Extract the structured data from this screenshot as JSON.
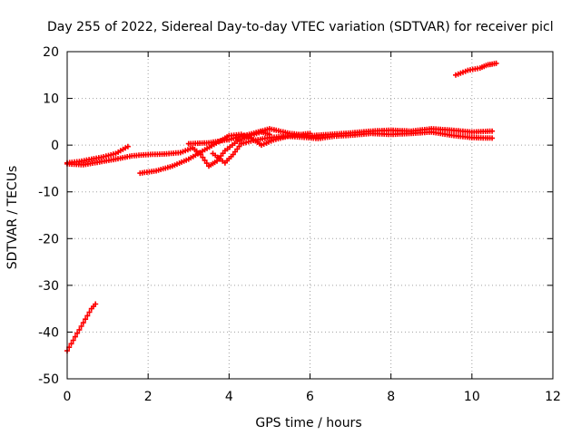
{
  "chart_data": {
    "type": "scatter",
    "title": "Day 255 of 2022, Sidereal Day-to-day VTEC variation (SDTVAR) for receiver picl",
    "xlabel": "GPS time / hours",
    "ylabel": "SDTVAR / TECUs",
    "xlim": [
      0,
      12
    ],
    "ylim": [
      -50,
      20
    ],
    "xticks": [
      "0",
      "2",
      "4",
      "6",
      "8",
      "10",
      "12"
    ],
    "yticks": [
      "-50",
      "-40",
      "-30",
      "-20",
      "-10",
      "0",
      "10",
      "20"
    ],
    "grid": true,
    "legend": "none",
    "series_color": "#ff0000",
    "series": [
      {
        "values": [
          [
            0.0,
            -44
          ],
          [
            0.1,
            -42.5
          ],
          [
            0.2,
            -41
          ],
          [
            0.3,
            -39.5
          ],
          [
            0.4,
            -38
          ],
          [
            0.5,
            -36.5
          ],
          [
            0.6,
            -35
          ],
          [
            0.7,
            -34
          ]
        ]
      },
      {
        "values": [
          [
            0.0,
            -3.8
          ],
          [
            0.3,
            -3.5
          ],
          [
            0.6,
            -3.0
          ],
          [
            0.9,
            -2.5
          ],
          [
            1.2,
            -1.8
          ],
          [
            1.5,
            -0.3
          ]
        ]
      },
      {
        "values": [
          [
            0.0,
            -4.0
          ],
          [
            0.4,
            -4.2
          ],
          [
            0.8,
            -3.6
          ],
          [
            1.2,
            -3.0
          ],
          [
            1.6,
            -2.3
          ],
          [
            2.0,
            -2.0
          ],
          [
            2.4,
            -1.9
          ],
          [
            2.8,
            -1.6
          ],
          [
            3.1,
            -0.6
          ],
          [
            3.3,
            -2.0
          ],
          [
            3.5,
            -4.5
          ],
          [
            3.7,
            -3.4
          ],
          [
            3.9,
            -1.2
          ],
          [
            4.2,
            0.8
          ],
          [
            4.5,
            2.0
          ],
          [
            4.8,
            2.8
          ],
          [
            5.0,
            2.3
          ]
        ]
      },
      {
        "values": [
          [
            1.8,
            -6.0
          ],
          [
            2.2,
            -5.5
          ],
          [
            2.6,
            -4.5
          ],
          [
            3.0,
            -3.0
          ],
          [
            3.4,
            -1.0
          ],
          [
            3.8,
            1.0
          ],
          [
            4.0,
            2.0
          ],
          [
            4.3,
            2.3
          ],
          [
            4.6,
            1.2
          ],
          [
            4.8,
            0.0
          ],
          [
            5.1,
            1.1
          ],
          [
            5.5,
            2.0
          ],
          [
            6.0,
            2.5
          ]
        ]
      },
      {
        "values": [
          [
            3.0,
            0.3
          ],
          [
            3.5,
            0.5
          ],
          [
            4.0,
            1.2
          ],
          [
            4.5,
            2.3
          ],
          [
            5.0,
            3.5
          ],
          [
            5.5,
            2.5
          ],
          [
            6.0,
            2.0
          ],
          [
            6.5,
            2.3
          ],
          [
            7.0,
            2.6
          ],
          [
            7.5,
            3.0
          ],
          [
            8.0,
            3.2
          ],
          [
            8.5,
            3.0
          ],
          [
            9.0,
            3.5
          ],
          [
            9.5,
            3.2
          ],
          [
            10.0,
            2.8
          ],
          [
            10.5,
            3.0
          ]
        ]
      },
      {
        "values": [
          [
            3.6,
            -1.8
          ],
          [
            3.9,
            -3.8
          ],
          [
            4.1,
            -2.0
          ],
          [
            4.3,
            0.3
          ],
          [
            4.6,
            1.0
          ],
          [
            5.0,
            1.6
          ],
          [
            5.4,
            1.9
          ],
          [
            5.8,
            1.7
          ],
          [
            6.2,
            1.4
          ],
          [
            6.6,
            1.9
          ],
          [
            7.0,
            2.1
          ],
          [
            7.5,
            2.5
          ],
          [
            8.0,
            2.3
          ],
          [
            8.5,
            2.5
          ],
          [
            9.0,
            2.8
          ],
          [
            9.5,
            2.1
          ],
          [
            10.0,
            1.6
          ],
          [
            10.5,
            1.5
          ]
        ]
      },
      {
        "values": [
          [
            9.6,
            15.0
          ],
          [
            9.9,
            16.0
          ],
          [
            10.2,
            16.5
          ],
          [
            10.4,
            17.2
          ],
          [
            10.6,
            17.5
          ]
        ]
      }
    ]
  }
}
